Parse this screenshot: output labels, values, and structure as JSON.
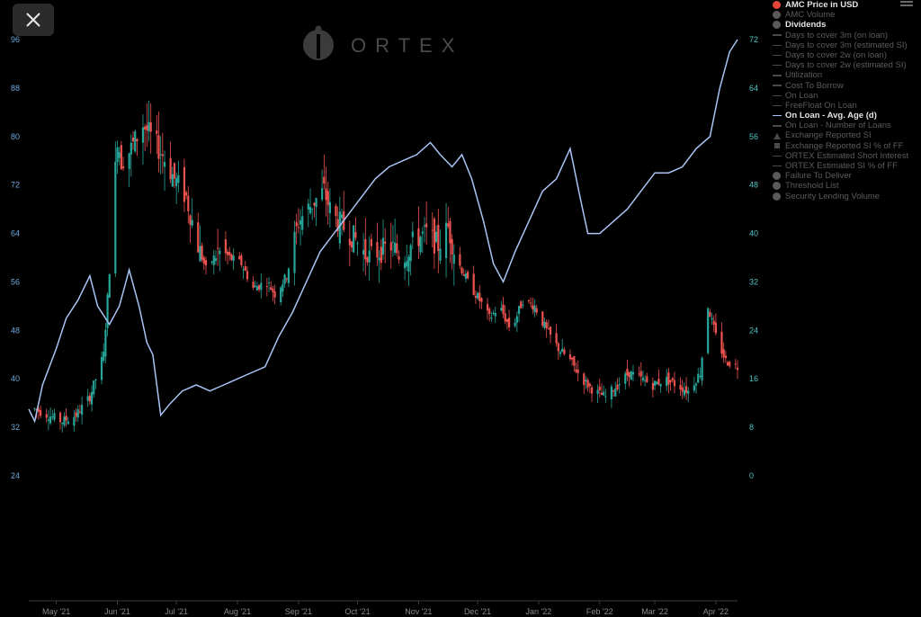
{
  "app": {
    "watermark": "ORTEX",
    "close_icon": "close-icon",
    "menu_icon": "hamburger-menu-icon"
  },
  "legend": {
    "items": [
      {
        "label": "AMC Price in USD",
        "marker": "dot",
        "color": "#e5443b",
        "active": true
      },
      {
        "label": "AMC Volume",
        "marker": "dot",
        "color": "#5a5a5a",
        "active": false
      },
      {
        "label": "Dividends",
        "marker": "dot",
        "color": "#5a5a5a",
        "active": true
      },
      {
        "label": "Days to cover 3m (on loan)",
        "marker": "line",
        "color": "#4a4a4a",
        "active": false
      },
      {
        "label": "Days to cover 3m (estimated SI)",
        "marker": "line",
        "color": "#4a4a4a",
        "active": false
      },
      {
        "label": "Days to cover 2w (on loan)",
        "marker": "line",
        "color": "#4a4a4a",
        "active": false
      },
      {
        "label": "Days to cover 2w (estimated SI)",
        "marker": "line",
        "color": "#4a4a4a",
        "active": false
      },
      {
        "label": "Utilization",
        "marker": "line",
        "color": "#4a4a4a",
        "active": false
      },
      {
        "label": "Cost To Borrow",
        "marker": "line",
        "color": "#4a4a4a",
        "active": false
      },
      {
        "label": "On Loan",
        "marker": "line",
        "color": "#4a4a4a",
        "active": false
      },
      {
        "label": "FreeFloat On Loan",
        "marker": "line",
        "color": "#4a4a4a",
        "active": false
      },
      {
        "label": "On Loan - Avg. Age (d)",
        "marker": "line",
        "color": "#a9c4f5",
        "active": true
      },
      {
        "label": "On Loan - Number of Loans",
        "marker": "line",
        "color": "#4a4a4a",
        "active": false
      },
      {
        "label": "Exchange Reported SI",
        "marker": "triangle",
        "color": "#4a4a4a",
        "active": false
      },
      {
        "label": "Exchange Reported SI % of FF",
        "marker": "square",
        "color": "#4a4a4a",
        "active": false
      },
      {
        "label": "ORTEX Estimated Short Interest",
        "marker": "line",
        "color": "#4a4a4a",
        "active": false
      },
      {
        "label": "ORTEX Estimated SI % of FF",
        "marker": "line",
        "color": "#4a4a4a",
        "active": false
      },
      {
        "label": "Failure To Deliver",
        "marker": "dot",
        "color": "#5a5a5a",
        "active": false
      },
      {
        "label": "Threshold List",
        "marker": "dot",
        "color": "#5a5a5a",
        "active": false
      },
      {
        "label": "Security Lending Volume",
        "marker": "dot",
        "color": "#5a5a5a",
        "active": false
      }
    ]
  },
  "chart_data": {
    "type": "line",
    "y_left": {
      "ticks": [
        "96",
        "88",
        "80",
        "72",
        "64",
        "56",
        "48",
        "40",
        "32",
        "24"
      ],
      "range": [
        24,
        96
      ],
      "color": "#6fa8dc"
    },
    "y_right": {
      "ticks": [
        "72",
        "64",
        "56",
        "48",
        "40",
        "32",
        "24",
        "16",
        "8",
        "0"
      ],
      "range": [
        0,
        72
      ],
      "color": "#4fc3c3"
    },
    "x": {
      "ticks": [
        "May '21",
        "Jun '21",
        "Jul '21",
        "Aug '21",
        "Sep '21",
        "Oct '21",
        "Nov '21",
        "Dec '21",
        "Jan '22",
        "Feb '22",
        "Mar '22",
        "Apr '22"
      ],
      "start": "2021-04-17",
      "end": "2022-04-12"
    },
    "grid": false,
    "series": [
      {
        "name": "AMC Price in USD",
        "type": "candlestick",
        "axis": "left",
        "up_color": "#26a69a",
        "down_color": "#ef5350",
        "close": [
          [
            "2021-04-20",
            35
          ],
          [
            "2021-04-27",
            34
          ],
          [
            "2021-05-04",
            33
          ],
          [
            "2021-05-11",
            34
          ],
          [
            "2021-05-18",
            37
          ],
          [
            "2021-05-25",
            44
          ],
          [
            "2021-05-28",
            58
          ],
          [
            "2021-06-01",
            80
          ],
          [
            "2021-06-03",
            76
          ],
          [
            "2021-06-08",
            78
          ],
          [
            "2021-06-14",
            82
          ],
          [
            "2021-06-18",
            80
          ],
          [
            "2021-06-24",
            77
          ],
          [
            "2021-06-30",
            73
          ],
          [
            "2021-07-06",
            70
          ],
          [
            "2021-07-12",
            62
          ],
          [
            "2021-07-16",
            58
          ],
          [
            "2021-07-22",
            61
          ],
          [
            "2021-07-28",
            60
          ],
          [
            "2021-08-03",
            59
          ],
          [
            "2021-08-09",
            55
          ],
          [
            "2021-08-16",
            56
          ],
          [
            "2021-08-20",
            54
          ],
          [
            "2021-08-26",
            57
          ],
          [
            "2021-09-01",
            66
          ],
          [
            "2021-09-08",
            69
          ],
          [
            "2021-09-14",
            71
          ],
          [
            "2021-09-18",
            67
          ],
          [
            "2021-09-24",
            65
          ],
          [
            "2021-09-30",
            63
          ],
          [
            "2021-10-06",
            60
          ],
          [
            "2021-10-12",
            61
          ],
          [
            "2021-10-18",
            62
          ],
          [
            "2021-10-24",
            60
          ],
          [
            "2021-10-30",
            63
          ],
          [
            "2021-11-05",
            64
          ],
          [
            "2021-11-11",
            62
          ],
          [
            "2021-11-16",
            65
          ],
          [
            "2021-11-20",
            60
          ],
          [
            "2021-11-26",
            56
          ],
          [
            "2021-12-02",
            53
          ],
          [
            "2021-12-07",
            50
          ],
          [
            "2021-12-12",
            52
          ],
          [
            "2021-12-18",
            48
          ],
          [
            "2021-12-24",
            53
          ],
          [
            "2021-12-30",
            52
          ],
          [
            "2022-01-05",
            48
          ],
          [
            "2022-01-11",
            45
          ],
          [
            "2022-01-17",
            43
          ],
          [
            "2022-01-23",
            40
          ],
          [
            "2022-01-29",
            38
          ],
          [
            "2022-02-04",
            37
          ],
          [
            "2022-02-10",
            39
          ],
          [
            "2022-02-16",
            41
          ],
          [
            "2022-02-22",
            40
          ],
          [
            "2022-02-28",
            39
          ],
          [
            "2022-03-06",
            40
          ],
          [
            "2022-03-12",
            39
          ],
          [
            "2022-03-18",
            38
          ],
          [
            "2022-03-24",
            41
          ],
          [
            "2022-03-28",
            52
          ],
          [
            "2022-04-01",
            47
          ],
          [
            "2022-04-06",
            43
          ],
          [
            "2022-04-12",
            42
          ]
        ]
      },
      {
        "name": "On Loan - Avg. Age (d)",
        "type": "line",
        "axis": "right",
        "color": "#a9c4f5",
        "points": [
          [
            "2021-04-17",
            11
          ],
          [
            "2021-04-20",
            9
          ],
          [
            "2021-04-24",
            15
          ],
          [
            "2021-05-01",
            21
          ],
          [
            "2021-05-06",
            26
          ],
          [
            "2021-05-12",
            29
          ],
          [
            "2021-05-18",
            33
          ],
          [
            "2021-05-22",
            28
          ],
          [
            "2021-05-28",
            25
          ],
          [
            "2021-06-02",
            28
          ],
          [
            "2021-06-07",
            34
          ],
          [
            "2021-06-12",
            28
          ],
          [
            "2021-06-16",
            22
          ],
          [
            "2021-06-19",
            20
          ],
          [
            "2021-06-23",
            10
          ],
          [
            "2021-06-28",
            12
          ],
          [
            "2021-07-04",
            14
          ],
          [
            "2021-07-11",
            15
          ],
          [
            "2021-07-18",
            14
          ],
          [
            "2021-07-25",
            15
          ],
          [
            "2021-08-01",
            16
          ],
          [
            "2021-08-08",
            17
          ],
          [
            "2021-08-15",
            18
          ],
          [
            "2021-08-22",
            23
          ],
          [
            "2021-08-29",
            27
          ],
          [
            "2021-09-05",
            32
          ],
          [
            "2021-09-12",
            37
          ],
          [
            "2021-09-19",
            40
          ],
          [
            "2021-09-26",
            43
          ],
          [
            "2021-10-03",
            46
          ],
          [
            "2021-10-10",
            49
          ],
          [
            "2021-10-17",
            51
          ],
          [
            "2021-10-24",
            52
          ],
          [
            "2021-10-31",
            53
          ],
          [
            "2021-11-07",
            55
          ],
          [
            "2021-11-12",
            53
          ],
          [
            "2021-11-18",
            51
          ],
          [
            "2021-11-23",
            53
          ],
          [
            "2021-11-28",
            49
          ],
          [
            "2021-12-04",
            42
          ],
          [
            "2021-12-09",
            35
          ],
          [
            "2021-12-14",
            32
          ],
          [
            "2021-12-20",
            37
          ],
          [
            "2021-12-27",
            42
          ],
          [
            "2022-01-03",
            47
          ],
          [
            "2022-01-10",
            49
          ],
          [
            "2022-01-17",
            54
          ],
          [
            "2022-01-22",
            46
          ],
          [
            "2022-01-26",
            40
          ],
          [
            "2022-02-01",
            40
          ],
          [
            "2022-02-08",
            42
          ],
          [
            "2022-02-15",
            44
          ],
          [
            "2022-02-22",
            47
          ],
          [
            "2022-03-01",
            50
          ],
          [
            "2022-03-08",
            50
          ],
          [
            "2022-03-15",
            51
          ],
          [
            "2022-03-22",
            54
          ],
          [
            "2022-03-29",
            56
          ],
          [
            "2022-04-03",
            64
          ],
          [
            "2022-04-08",
            70
          ],
          [
            "2022-04-12",
            72
          ]
        ]
      }
    ]
  }
}
